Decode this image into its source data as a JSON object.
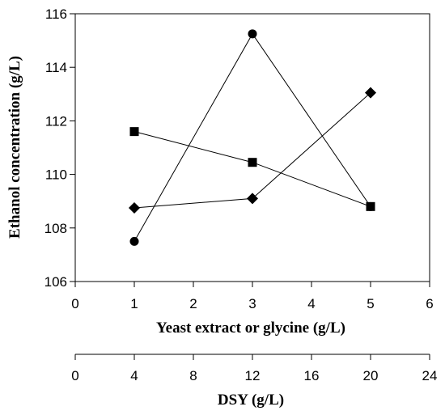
{
  "chart_data": {
    "type": "scatter",
    "ylabel": "Ethanol concentration (g/L)",
    "xlabel": "Yeast extract or glycine (g/L)",
    "x2label": "DSY (g/L)",
    "xlim": [
      0,
      6
    ],
    "x2lim": [
      0,
      24
    ],
    "ylim": [
      106,
      116
    ],
    "xticks": [
      0,
      1,
      2,
      3,
      4,
      5,
      6
    ],
    "x2ticks": [
      0,
      4,
      8,
      12,
      16,
      20,
      24
    ],
    "yticks": [
      106,
      108,
      110,
      112,
      114,
      116
    ],
    "grid": false,
    "series": [
      {
        "marker": "circle",
        "x": [
          1,
          3,
          5
        ],
        "values": [
          107.5,
          115.25,
          108.8
        ]
      },
      {
        "marker": "square",
        "x": [
          1,
          3,
          5
        ],
        "values": [
          111.6,
          110.45,
          108.8
        ]
      },
      {
        "marker": "diamond",
        "x": [
          1,
          3,
          5
        ],
        "values": [
          108.75,
          109.1,
          113.05
        ]
      }
    ],
    "colors": {
      "line": "#000000",
      "marker": "#000000"
    }
  }
}
